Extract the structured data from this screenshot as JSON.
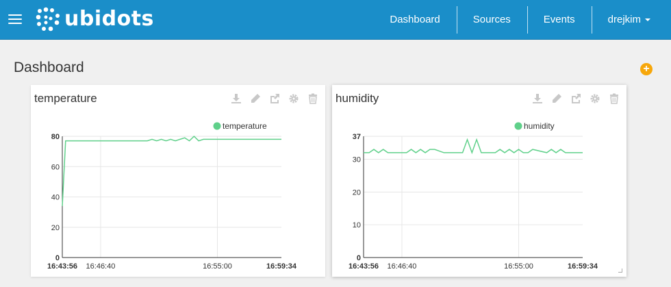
{
  "brand": {
    "name": "ubidots"
  },
  "nav": {
    "items": [
      {
        "label": "Dashboard"
      },
      {
        "label": "Sources"
      },
      {
        "label": "Events"
      }
    ],
    "user": "drejkim"
  },
  "page": {
    "title": "Dashboard",
    "add_label": "+"
  },
  "icons": {
    "hamburger": "menu-icon",
    "add": "plus-circle-icon",
    "tools": [
      "download-icon",
      "pencil-icon",
      "share-icon",
      "gear-icon",
      "trash-icon"
    ]
  },
  "colors": {
    "topbar": "#1a8ec9",
    "series": "#5fd08a",
    "add_button": "#f7a70a"
  },
  "widgets": [
    {
      "title": "temperature",
      "legend": "temperature",
      "x_start": "16:43:56",
      "x_end": "16:59:34",
      "x_ticks": [
        "16:46:40",
        "16:55:00"
      ]
    },
    {
      "title": "humidity",
      "legend": "humidity",
      "x_start": "16:43:56",
      "x_end": "16:59:34",
      "x_ticks": [
        "16:46:40",
        "16:55:00"
      ]
    }
  ],
  "chart_data": [
    {
      "type": "line",
      "title": "",
      "series": [
        {
          "name": "temperature",
          "x": [
            "16:43:56",
            "16:44:10",
            "16:50:00",
            "16:50:20",
            "16:50:40",
            "16:51:00",
            "16:51:20",
            "16:51:40",
            "16:52:00",
            "16:52:20",
            "16:52:40",
            "16:53:00",
            "16:53:20",
            "16:53:40",
            "16:54:00",
            "16:59:34"
          ],
          "values": [
            34,
            77,
            77,
            78,
            77,
            78,
            77,
            78,
            77,
            78,
            79,
            77,
            80,
            77,
            78,
            78
          ]
        }
      ],
      "ylim": [
        0,
        80
      ],
      "yticks": [
        0,
        20,
        40,
        60,
        80
      ],
      "xlim": [
        "16:43:56",
        "16:59:34"
      ],
      "xticks": [
        "16:43:56",
        "16:46:40",
        "16:55:00",
        "16:59:34"
      ],
      "grid": true,
      "legend": "top-right"
    },
    {
      "type": "line",
      "title": "",
      "series": [
        {
          "name": "humidity",
          "x": [
            "16:43:56",
            "16:44:20",
            "16:44:40",
            "16:45:00",
            "16:45:20",
            "16:45:40",
            "16:47:00",
            "16:47:20",
            "16:47:40",
            "16:48:00",
            "16:48:20",
            "16:48:40",
            "16:49:00",
            "16:49:40",
            "16:50:00",
            "16:51:00",
            "16:51:20",
            "16:51:40",
            "16:52:00",
            "16:52:20",
            "16:52:40",
            "16:53:20",
            "16:53:40",
            "16:54:00",
            "16:54:20",
            "16:54:40",
            "16:55:00",
            "16:55:20",
            "16:55:40",
            "16:56:00",
            "16:57:00",
            "16:57:20",
            "16:57:40",
            "16:58:00",
            "16:58:20",
            "16:59:34"
          ],
          "values": [
            32,
            32,
            33,
            32,
            33,
            32,
            32,
            33,
            32,
            33,
            32,
            33,
            33,
            32,
            32,
            32,
            36,
            32,
            36,
            32,
            32,
            32,
            33,
            32,
            33,
            32,
            33,
            32,
            32,
            33,
            32,
            33,
            32,
            33,
            32,
            32
          ]
        }
      ],
      "ylim": [
        0,
        37
      ],
      "yticks": [
        0,
        10,
        20,
        30,
        37
      ],
      "xlim": [
        "16:43:56",
        "16:59:34"
      ],
      "xticks": [
        "16:43:56",
        "16:46:40",
        "16:55:00",
        "16:59:34"
      ],
      "grid": true,
      "legend": "top-right"
    }
  ]
}
